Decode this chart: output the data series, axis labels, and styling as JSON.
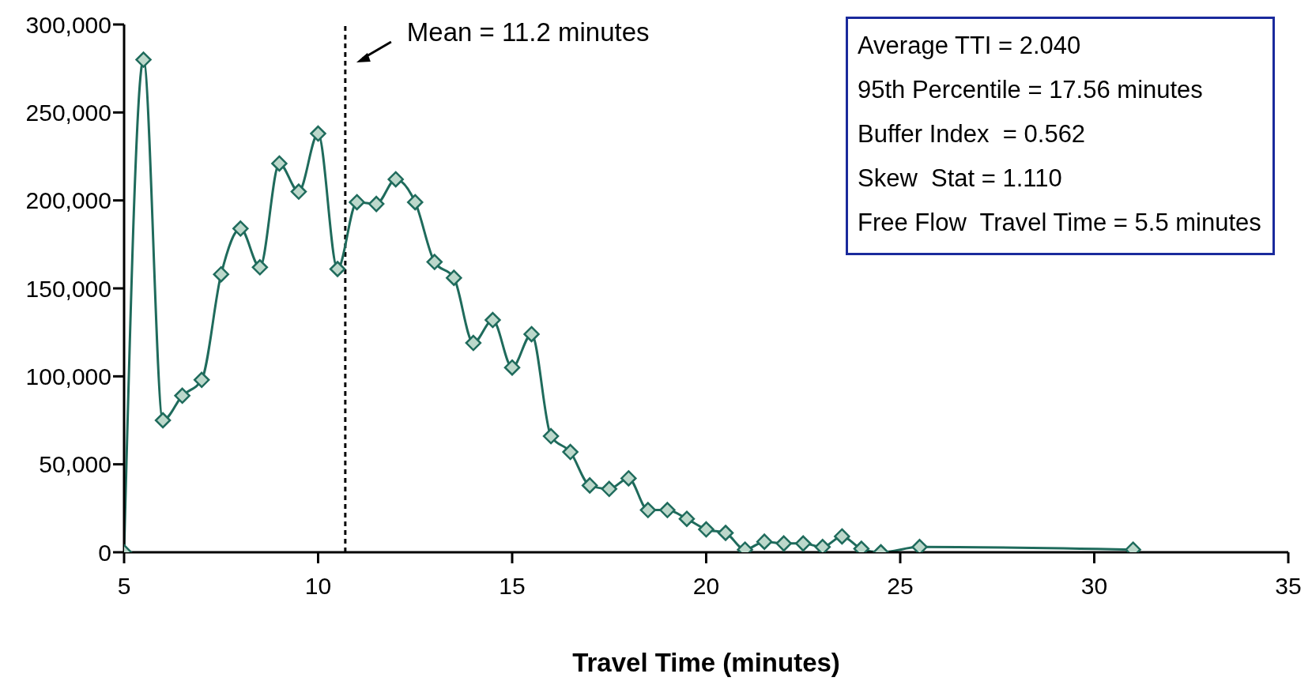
{
  "chart_data": {
    "type": "line",
    "xlabel": "Travel Time (minutes)",
    "x": [
      5,
      5.5,
      6,
      6.5,
      7,
      7.5,
      8,
      8.5,
      9,
      9.5,
      10,
      10.5,
      11,
      11.5,
      12,
      12.5,
      13,
      13.5,
      14,
      14.5,
      15,
      15.5,
      16,
      16.5,
      17,
      17.5,
      18,
      18.5,
      19,
      19.5,
      20,
      20.5,
      21,
      21.5,
      22,
      22.5,
      23,
      23.5,
      24,
      24.5,
      25.5,
      31
    ],
    "series": [
      {
        "color": "#1f6b5c",
        "values": [
          0,
          280000,
          75000,
          89000,
          98000,
          158000,
          184000,
          162000,
          221000,
          205000,
          238000,
          161000,
          199000,
          198000,
          212000,
          199000,
          165000,
          156000,
          119000,
          132000,
          105000,
          124000,
          66000,
          57000,
          38000,
          36000,
          42000,
          24000,
          24000,
          19000,
          13000,
          11000,
          1500,
          6000,
          5000,
          5000,
          3000,
          9000,
          2000,
          0,
          3000,
          1500
        ]
      }
    ],
    "xlim": [
      5,
      35
    ],
    "xticks": [
      5,
      10,
      15,
      20,
      25,
      30,
      35
    ],
    "ylim": [
      0,
      300000
    ],
    "yticks": [
      {
        "value": 0,
        "label": "0"
      },
      {
        "value": 50000,
        "label": "50,000"
      },
      {
        "value": 100000,
        "label": "100,000"
      },
      {
        "value": 150000,
        "label": "150,000"
      },
      {
        "value": 200000,
        "label": "200,000"
      },
      {
        "value": 250000,
        "label": "250,000"
      },
      {
        "value": 300000,
        "label": "300,000"
      }
    ],
    "ref_lines": [
      {
        "axis": "x",
        "value": 10.7,
        "color": "#000000",
        "line_style": "dashed"
      }
    ],
    "annotations": [
      {
        "text": "Mean = 11.2 minutes"
      },
      "Average TTI = 2.040",
      "95th Percentile = 17.56 minutes",
      "Buffer Index  = 0.562",
      "Skew  Stat = 1.110",
      "Free Flow  Travel Time = 5.5 minutes"
    ],
    "grid": false,
    "legend": false,
    "marker": "diamond",
    "line_style": "solid"
  }
}
